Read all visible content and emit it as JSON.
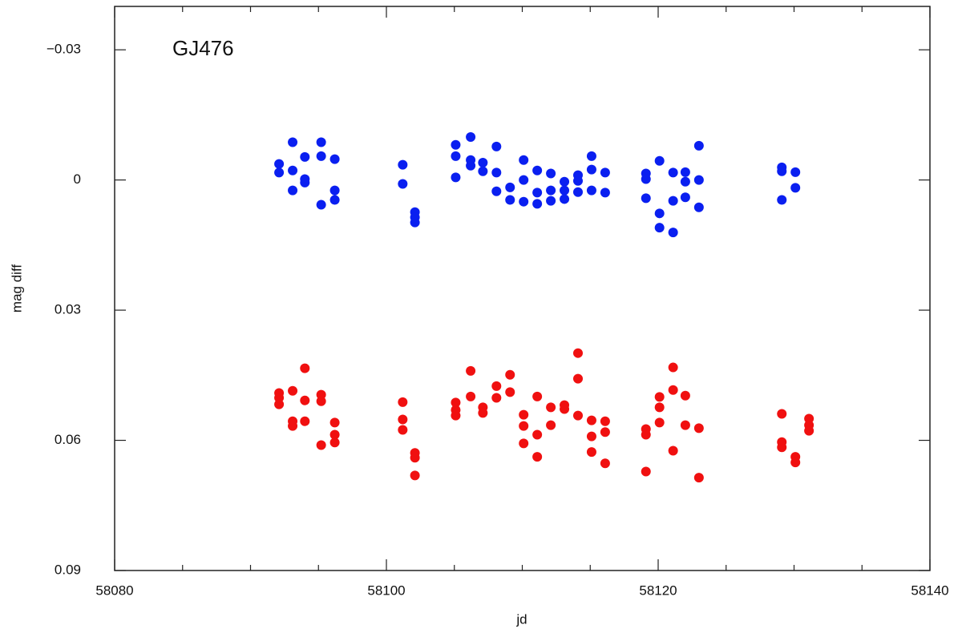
{
  "chart_data": {
    "type": "scatter",
    "annotation": "GJ476",
    "xlabel": "jd",
    "ylabel": "mag diff",
    "xlim": [
      58080,
      58140
    ],
    "xticks": [
      58080,
      58100,
      58120,
      58140
    ],
    "xminor_ticks": [
      58085,
      58090,
      58095,
      58105,
      58110,
      58115,
      58125,
      58130,
      58135
    ],
    "ylim": [
      0.09,
      -0.04
    ],
    "yticks": [
      {
        "value": -0.03,
        "label": "−0.03"
      },
      0,
      0.03,
      0.06,
      0.09
    ],
    "series": [
      {
        "color": "#0a1ff0",
        "x": [
          58092.1,
          58092.1,
          58093.1,
          58093.1,
          58093.1,
          58094,
          58094,
          58094,
          58095.2,
          58095.2,
          58095.2,
          58096.2,
          58096.2,
          58096.2,
          58101.2,
          58101.2,
          58102.1,
          58102.1,
          58102.1,
          58105.1,
          58105.1,
          58105.1,
          58106.2,
          58106.2,
          58106.2,
          58107.1,
          58107.1,
          58108.1,
          58108.1,
          58108.1,
          58109.1,
          58109.1,
          58110.1,
          58110.1,
          58110.1,
          58111.1,
          58111.1,
          58111.1,
          58112.1,
          58112.1,
          58112.1,
          58113.1,
          58113.1,
          58113.1,
          58114.1,
          58114.1,
          58114.1,
          58115.1,
          58115.1,
          58115.1,
          58116.1,
          58116.1,
          58119.1,
          58119.1,
          58119.1,
          58120.1,
          58120.1,
          58120.1,
          58121.1,
          58121.1,
          58121.1,
          58122,
          58122,
          58122,
          58123,
          58123,
          58123,
          58129.1,
          58129.1,
          58129.1,
          58130.1,
          58130.1
        ],
        "values": [
          -0.0037,
          -0.0017,
          -0.0087,
          -0.0022,
          0.0024,
          -0.0053,
          -0.0002,
          0.0006,
          -0.0087,
          -0.0055,
          0.0057,
          -0.0048,
          0.0024,
          0.0046,
          -0.0035,
          0.0009,
          0.0074,
          0.0086,
          0.0098,
          -0.0081,
          -0.0055,
          -0.0006,
          -0.0099,
          -0.0046,
          -0.0033,
          -0.004,
          -0.002,
          -0.0077,
          -0.0017,
          0.0026,
          0.0017,
          0.0046,
          -0.0046,
          0,
          0.005,
          -0.0022,
          0.0029,
          0.0055,
          -0.0015,
          0.0024,
          0.0048,
          0.0004,
          0.0024,
          0.0044,
          -0.0011,
          0.0002,
          0.0028,
          -0.0055,
          -0.0024,
          0.0024,
          -0.0017,
          0.0029,
          -0.0015,
          -0.0002,
          0.0042,
          -0.0044,
          0.0077,
          0.011,
          -0.0017,
          0.0048,
          0.0121,
          -0.0018,
          0.0004,
          0.004,
          -0.0079,
          0,
          0.0063,
          -0.0029,
          -0.002,
          0.0046,
          -0.0018,
          0.0018
        ]
      },
      {
        "color": "#f01010",
        "x": [
          58092.1,
          58092.1,
          58092.1,
          58093.1,
          58093.1,
          58093.1,
          58094,
          58094,
          58094,
          58095.2,
          58095.2,
          58095.2,
          58096.2,
          58096.2,
          58096.2,
          58101.2,
          58101.2,
          58101.2,
          58102.1,
          58102.1,
          58102.1,
          58105.1,
          58105.1,
          58105.1,
          58106.2,
          58106.2,
          58107.1,
          58107.1,
          58108.1,
          58108.1,
          58109.1,
          58109.1,
          58110.1,
          58110.1,
          58110.1,
          58111.1,
          58111.1,
          58111.1,
          58112.1,
          58112.1,
          58113.1,
          58113.1,
          58114.1,
          58114.1,
          58114.1,
          58115.1,
          58115.1,
          58115.1,
          58116.1,
          58116.1,
          58116.1,
          58119.1,
          58119.1,
          58119.1,
          58120.1,
          58120.1,
          58120.1,
          58121.1,
          58121.1,
          58121.1,
          58122,
          58122,
          58123,
          58123,
          58129.1,
          58129.1,
          58129.1,
          58130.1,
          58130.1,
          58131.1,
          58131.1,
          58131.1
        ],
        "values": [
          0.0491,
          0.0502,
          0.0517,
          0.0486,
          0.0556,
          0.0567,
          0.0434,
          0.0508,
          0.0556,
          0.0495,
          0.051,
          0.0611,
          0.0559,
          0.0587,
          0.0605,
          0.0512,
          0.0552,
          0.0576,
          0.0629,
          0.064,
          0.0681,
          0.0513,
          0.053,
          0.0543,
          0.044,
          0.0499,
          0.0524,
          0.0537,
          0.0475,
          0.0502,
          0.0449,
          0.0489,
          0.0541,
          0.0567,
          0.0607,
          0.0499,
          0.0587,
          0.0638,
          0.0524,
          0.0565,
          0.0519,
          0.0528,
          0.0399,
          0.0458,
          0.0543,
          0.0554,
          0.0591,
          0.0627,
          0.0556,
          0.0581,
          0.0653,
          0.0574,
          0.0587,
          0.0672,
          0.05,
          0.0524,
          0.0559,
          0.0432,
          0.0484,
          0.0624,
          0.0497,
          0.0565,
          0.0572,
          0.0686,
          0.0539,
          0.0604,
          0.0616,
          0.0638,
          0.0651,
          0.055,
          0.0565,
          0.0578
        ]
      }
    ]
  }
}
